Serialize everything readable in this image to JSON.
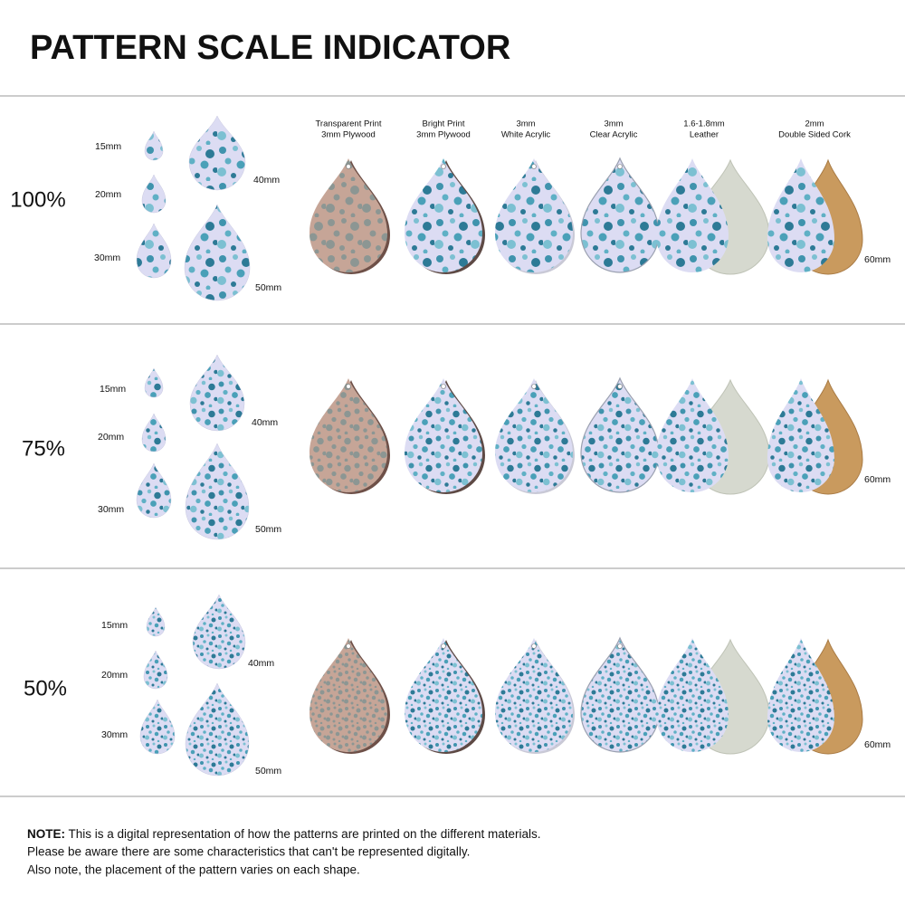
{
  "title": "PATTERN SCALE INDICATOR",
  "materials": [
    {
      "lines": [
        "Transparent Print",
        "3mm Plywood"
      ]
    },
    {
      "lines": [
        "Bright Print",
        "3mm Plywood"
      ]
    },
    {
      "lines": [
        "3mm",
        "White Acrylic"
      ]
    },
    {
      "lines": [
        "3mm",
        "Clear Acrylic"
      ]
    },
    {
      "lines": [
        "1.6-1.8mm",
        "Leather"
      ]
    },
    {
      "lines": [
        "2mm",
        "Double Sided Cork"
      ]
    }
  ],
  "sections": [
    {
      "scale": "100%",
      "sizes": [
        "15mm",
        "20mm",
        "30mm",
        "40mm",
        "50mm"
      ],
      "large_size": "60mm"
    },
    {
      "scale": "75%",
      "sizes": [
        "15mm",
        "20mm",
        "30mm",
        "40mm",
        "50mm"
      ],
      "large_size": "60mm"
    },
    {
      "scale": "50%",
      "sizes": [
        "15mm",
        "20mm",
        "30mm",
        "40mm",
        "50mm"
      ],
      "large_size": "60mm"
    }
  ],
  "note": {
    "label": "NOTE:",
    "lines": [
      "This is a digital representation of how the patterns are printed on the different materials.",
      "Please be aware there are some characteristics that can't be represented digitally.",
      "Also note, the placement of the pattern varies on each shape."
    ]
  }
}
